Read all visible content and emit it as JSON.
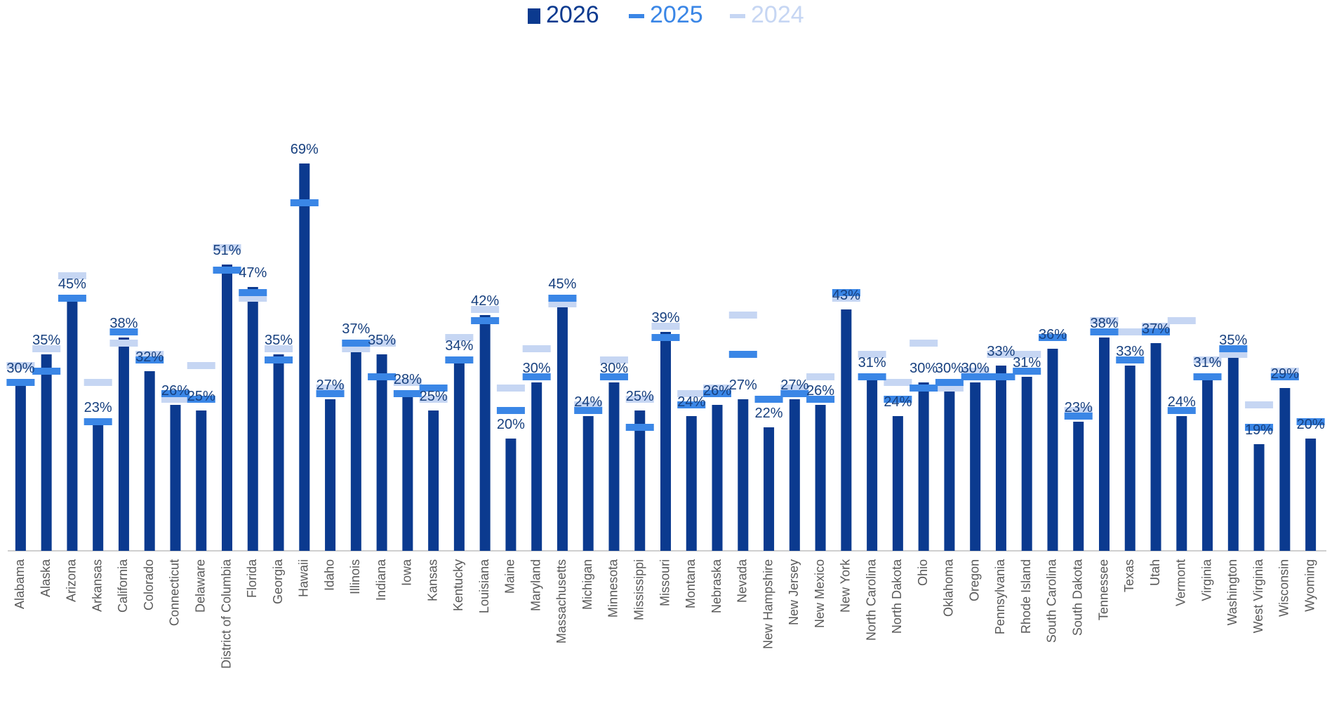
{
  "chart_data": {
    "type": "bar",
    "categories": [
      "Alabama",
      "Alaska",
      "Arizona",
      "Arkansas",
      "California",
      "Colorado",
      "Connecticut",
      "Delaware",
      "District of Columbia",
      "Florida",
      "Georgia",
      "Hawaii",
      "Idaho",
      "Illinois",
      "Indiana",
      "Iowa",
      "Kansas",
      "Kentucky",
      "Louisiana",
      "Maine",
      "Maryland",
      "Massachusetts",
      "Michigan",
      "Minnesota",
      "Mississippi",
      "Missouri",
      "Montana",
      "Nebraska",
      "Nevada",
      "New Hampshire",
      "New Jersey",
      "New Mexico",
      "New York",
      "North Carolina",
      "North Dakota",
      "Ohio",
      "Oklahoma",
      "Oregon",
      "Pennsylvania",
      "Rhode Island",
      "South Carolina",
      "South Dakota",
      "Tennessee",
      "Texas",
      "Utah",
      "Vermont",
      "Virginia",
      "Washington",
      "West Virginia",
      "Wisconsin",
      "Wyoming"
    ],
    "series": [
      {
        "name": "2026",
        "color": "#0b3a8f",
        "values": [
          30,
          35,
          45,
          23,
          38,
          32,
          26,
          25,
          51,
          47,
          35,
          69,
          27,
          37,
          35,
          28,
          25,
          34,
          42,
          20,
          30,
          45,
          24,
          30,
          25,
          39,
          24,
          26,
          27,
          22,
          27,
          26,
          43,
          31,
          24,
          30,
          30,
          30,
          33,
          31,
          36,
          23,
          38,
          33,
          37,
          24,
          31,
          35,
          19,
          29,
          20
        ],
        "value_labels": [
          "30%",
          "35%",
          "45%",
          "23%",
          "38%",
          "32%",
          "26%",
          "25%",
          "51%",
          "47%",
          "35%",
          "69%",
          "27%",
          "37%",
          "35%",
          "28%",
          "25%",
          "34%",
          "42%",
          "20%",
          "30%",
          "45%",
          "24%",
          "30%",
          "25%",
          "39%",
          "24%",
          "26%",
          "27%",
          "22%",
          "27%",
          "26%",
          "43%",
          "31%",
          "24%",
          "30%",
          "30%",
          "30%",
          "33%",
          "31%",
          "36%",
          "23%",
          "38%",
          "33%",
          "37%",
          "24%",
          "31%",
          "35%",
          "19%",
          "29%",
          "20%"
        ]
      },
      {
        "name": "2025",
        "color": "#3a86e6",
        "values": [
          30,
          32,
          45,
          23,
          39,
          34,
          28,
          27,
          50,
          46,
          34,
          62,
          28,
          37,
          31,
          28,
          29,
          34,
          41,
          25,
          31,
          45,
          25,
          31,
          22,
          38,
          26,
          28,
          35,
          27,
          28,
          27,
          46,
          31,
          27,
          29,
          30,
          31,
          31,
          32,
          38,
          24,
          39,
          34,
          39,
          25,
          31,
          36,
          22,
          31,
          23
        ]
      },
      {
        "name": "2024",
        "color": "#c6d6f3",
        "values": [
          33,
          36,
          49,
          30,
          37,
          35,
          27,
          33,
          54,
          45,
          36,
          62,
          29,
          36,
          37,
          30,
          27,
          38,
          43,
          29,
          36,
          44,
          26,
          34,
          27,
          40,
          28,
          29,
          42,
          27,
          29,
          31,
          45,
          35,
          30,
          37,
          29,
          32,
          35,
          35,
          38,
          25,
          41,
          39,
          40,
          41,
          34,
          35,
          26,
          32,
          23
        ]
      }
    ]
  }
}
